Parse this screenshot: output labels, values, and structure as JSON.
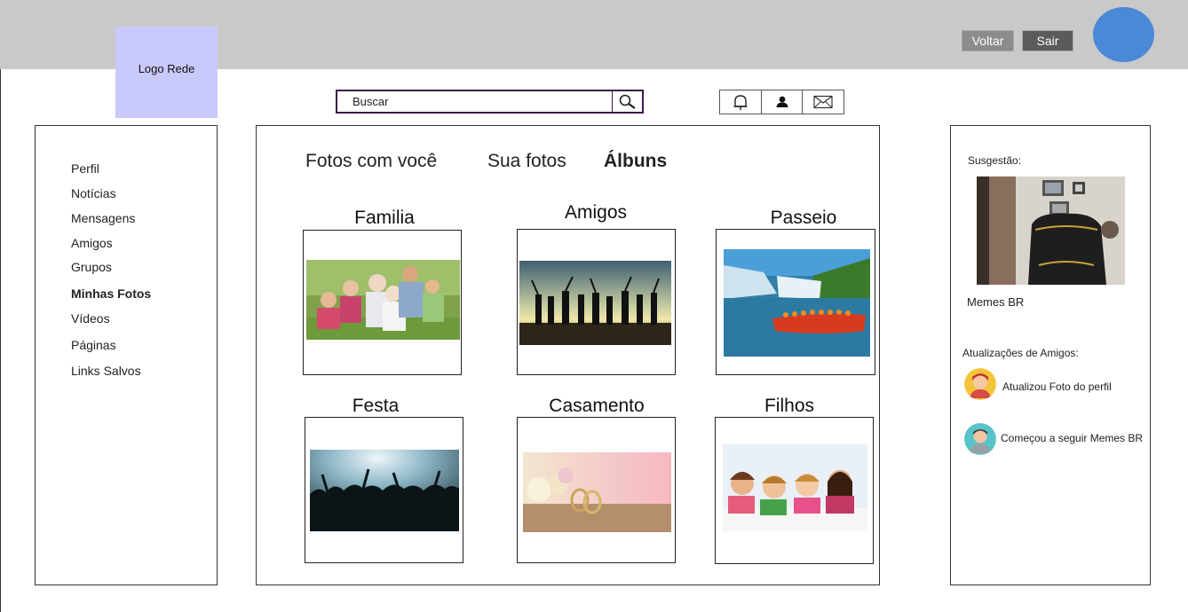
{
  "header": {
    "logo_text": "Logo Rede",
    "back_label": "Voltar",
    "exit_label": "Sair",
    "accent_color": "#4a88d8"
  },
  "search": {
    "placeholder": "Buscar",
    "icon": "magnifier-icon"
  },
  "icons": [
    "bell-icon",
    "user-icon",
    "mail-icon"
  ],
  "sidebar": {
    "items": [
      {
        "label": "Perfil"
      },
      {
        "label": "Notícias"
      },
      {
        "label": "Mensagens"
      },
      {
        "label": "Amigos"
      },
      {
        "label": "Grupos"
      },
      {
        "label": "Minhas Fotos",
        "active": true
      },
      {
        "label": "Vídeos"
      },
      {
        "label": "Páginas"
      },
      {
        "label": "Links Salvos"
      }
    ]
  },
  "main": {
    "tabs": [
      {
        "label": "Fotos com você"
      },
      {
        "label": "Sua fotos"
      },
      {
        "label": "Álbuns",
        "active": true
      }
    ],
    "albums": [
      {
        "title": "Familia"
      },
      {
        "title": "Amigos"
      },
      {
        "title": "Passeio"
      },
      {
        "title": "Festa"
      },
      {
        "title": "Casamento"
      },
      {
        "title": "Filhos"
      }
    ]
  },
  "right": {
    "suggestion_heading": "Susgestão:",
    "suggestion_name": "Memes BR",
    "updates_heading": "Atualizações de Amigos:",
    "updates": [
      {
        "text": "Atualizou Foto do perfil"
      },
      {
        "text": "Começou a seguir Memes BR"
      }
    ]
  }
}
